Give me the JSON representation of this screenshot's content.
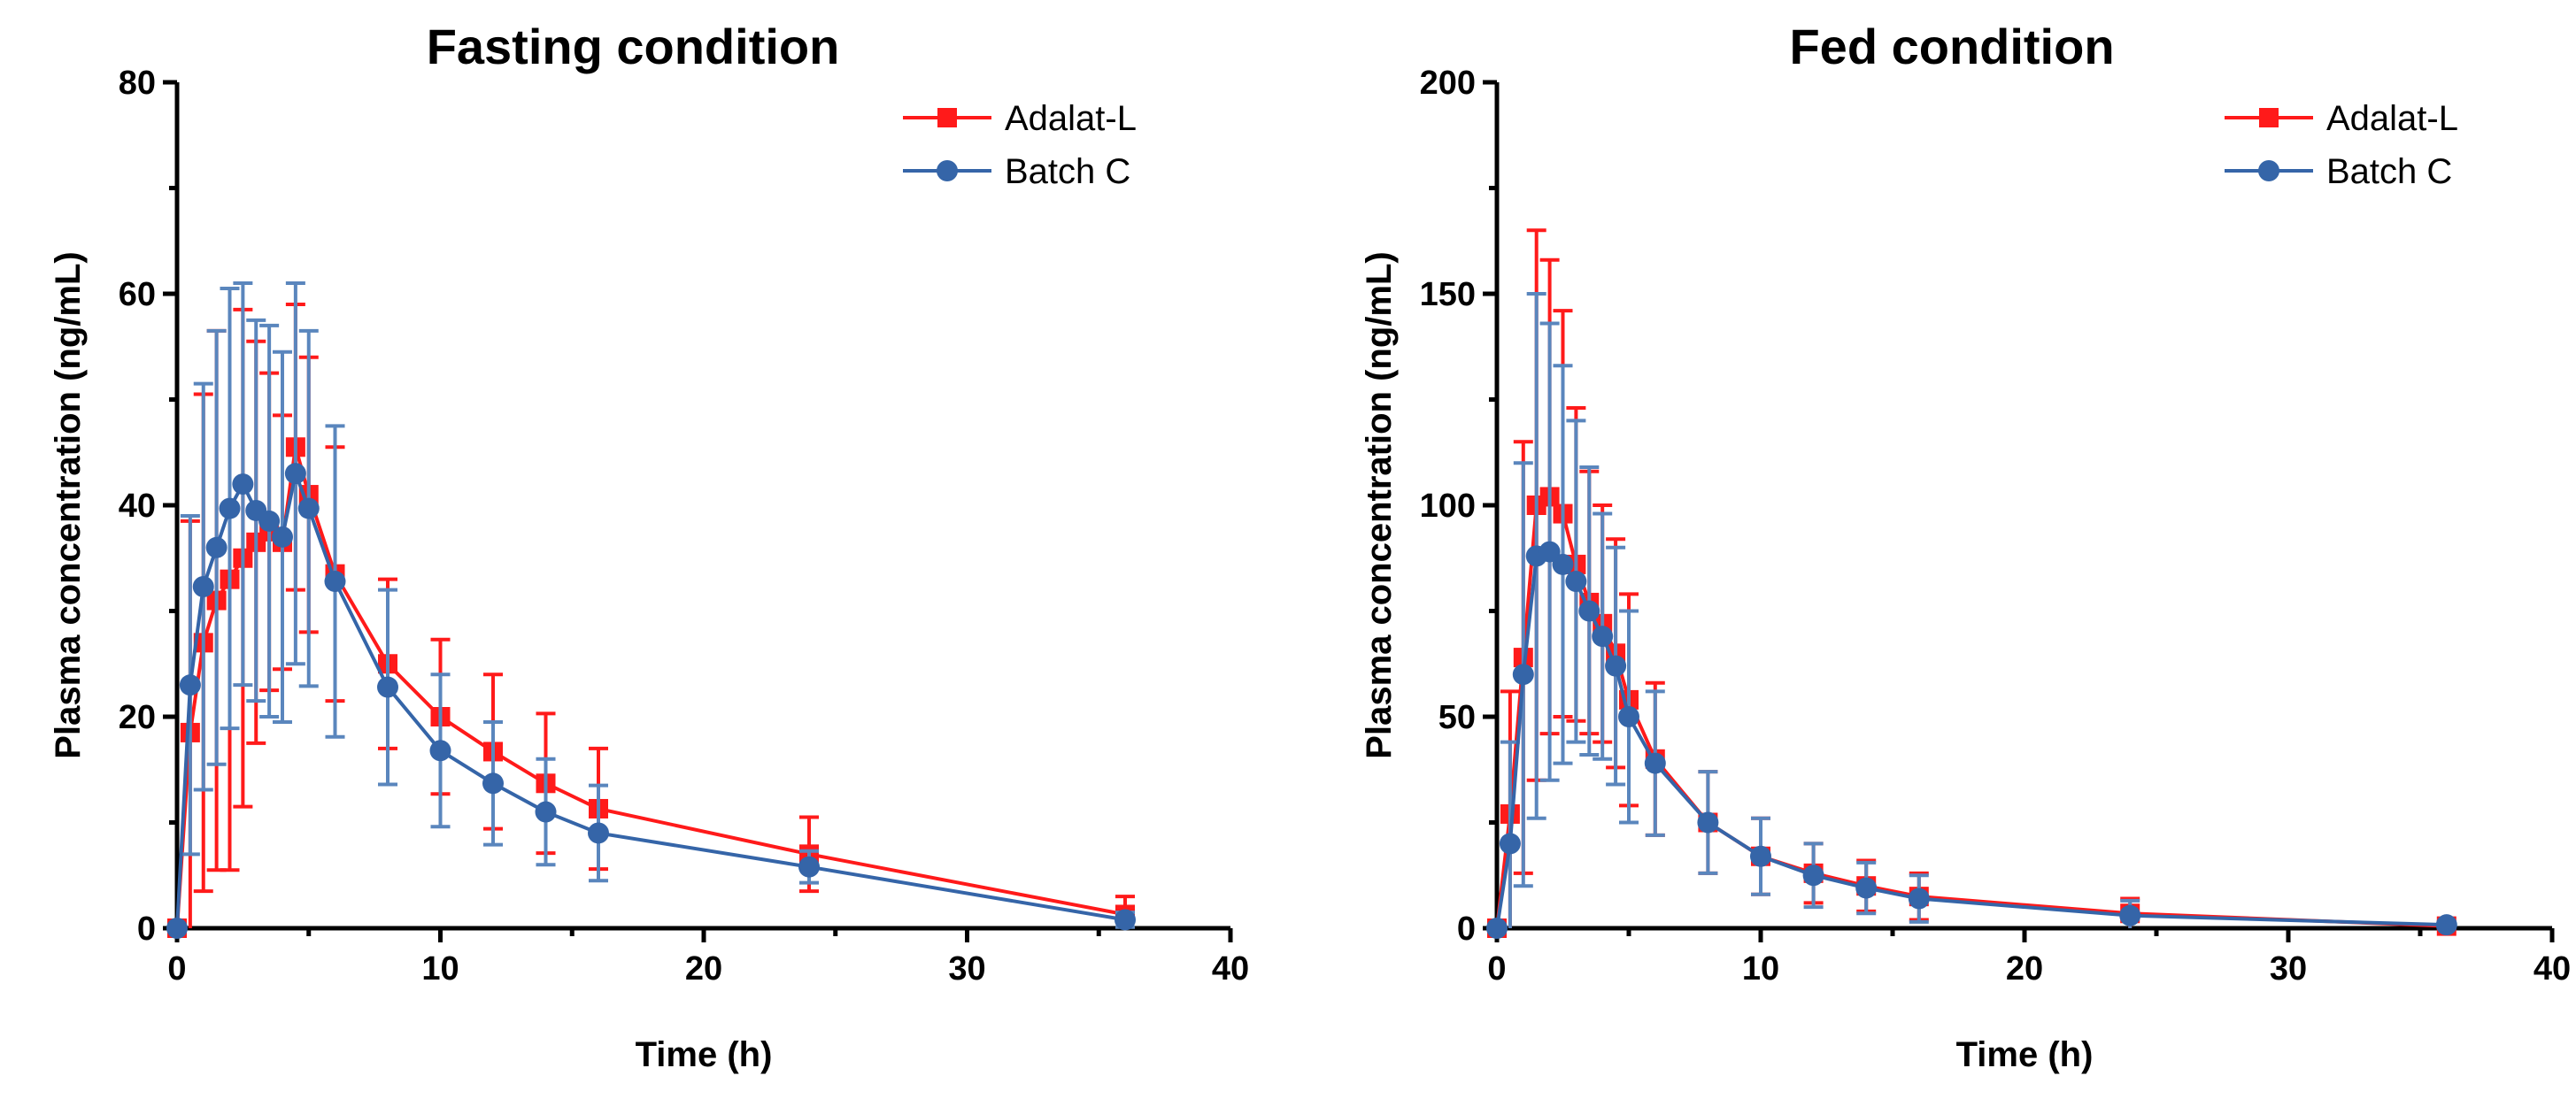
{
  "colors": {
    "adalat": "#ff1a1a",
    "batch": "#3565a8",
    "batch_err": "#5a86bd"
  },
  "chart_data": [
    {
      "type": "line",
      "title": "Fasting condition",
      "xlabel": "Time (h)",
      "ylabel": "Plasma concentration (ng/mL)",
      "xlim": [
        0,
        40
      ],
      "ylim": [
        0,
        80
      ],
      "xticks": [
        "0",
        "10",
        "20",
        "30",
        "40"
      ],
      "yticks": [
        "0",
        "20",
        "40",
        "60",
        "80"
      ],
      "legend_position": "top-right",
      "x": [
        0,
        0.5,
        1,
        1.5,
        2,
        2.5,
        3,
        3.5,
        4,
        4.5,
        5,
        6,
        8,
        10,
        12,
        14,
        16,
        24,
        36
      ],
      "series": [
        {
          "name": "Adalat-L",
          "marker": "square",
          "values": [
            0,
            18.5,
            27,
            31,
            33,
            35,
            36.5,
            37.5,
            36.5,
            45.5,
            41,
            33.5,
            25,
            20,
            16.7,
            13.7,
            11.3,
            7,
            1.3
          ],
          "sd": [
            0,
            20,
            23.5,
            25.5,
            27.5,
            23.5,
            19,
            15,
            12,
            13.5,
            13,
            12,
            8,
            7.3,
            7.3,
            6.6,
            5.7,
            3.5,
            1.7
          ]
        },
        {
          "name": "Batch C",
          "marker": "circle",
          "values": [
            0,
            23,
            32.3,
            36,
            39.7,
            42,
            39.5,
            38.5,
            37,
            43,
            39.7,
            32.8,
            22.8,
            16.8,
            13.7,
            11,
            9,
            5.8,
            0.8
          ],
          "sd": [
            0,
            16,
            19.2,
            20.5,
            20.8,
            19,
            18,
            18.5,
            17.5,
            18,
            16.8,
            14.7,
            9.2,
            7.2,
            5.8,
            5,
            4.5,
            1.5,
            0.7
          ]
        }
      ]
    },
    {
      "type": "line",
      "title": "Fed condition",
      "xlabel": "Time (h)",
      "ylabel": "Plasma concentration (ng/mL)",
      "xlim": [
        0,
        40
      ],
      "ylim": [
        0,
        200
      ],
      "xticks": [
        "0",
        "10",
        "20",
        "30",
        "40"
      ],
      "yticks": [
        "0",
        "50",
        "100",
        "150",
        "200"
      ],
      "legend_position": "top-right",
      "x": [
        0,
        0.5,
        1,
        1.5,
        2,
        2.5,
        3,
        3.5,
        4,
        4.5,
        5,
        6,
        8,
        10,
        12,
        14,
        16,
        24,
        36
      ],
      "series": [
        {
          "name": "Adalat-L",
          "marker": "square",
          "values": [
            0,
            27,
            64,
            100,
            102,
            98,
            86,
            77,
            72,
            65,
            54,
            40,
            25,
            17,
            13,
            10,
            7.5,
            3.5,
            0.5
          ],
          "sd": [
            0,
            29,
            51,
            65,
            56,
            48,
            37,
            31,
            28,
            27,
            25,
            18,
            12,
            9,
            7,
            6,
            5.5,
            3.5,
            1
          ]
        },
        {
          "name": "Batch C",
          "marker": "circle",
          "values": [
            0,
            20,
            60,
            88,
            89,
            86,
            82,
            75,
            69,
            62,
            50,
            39,
            25,
            17,
            12.5,
            9.5,
            7,
            3,
            0.8
          ],
          "sd": [
            0,
            24,
            50,
            62,
            54,
            47,
            38,
            34,
            29,
            28,
            25,
            17,
            12,
            9,
            7.5,
            6,
            5.5,
            3.5,
            0.7
          ]
        }
      ]
    }
  ]
}
